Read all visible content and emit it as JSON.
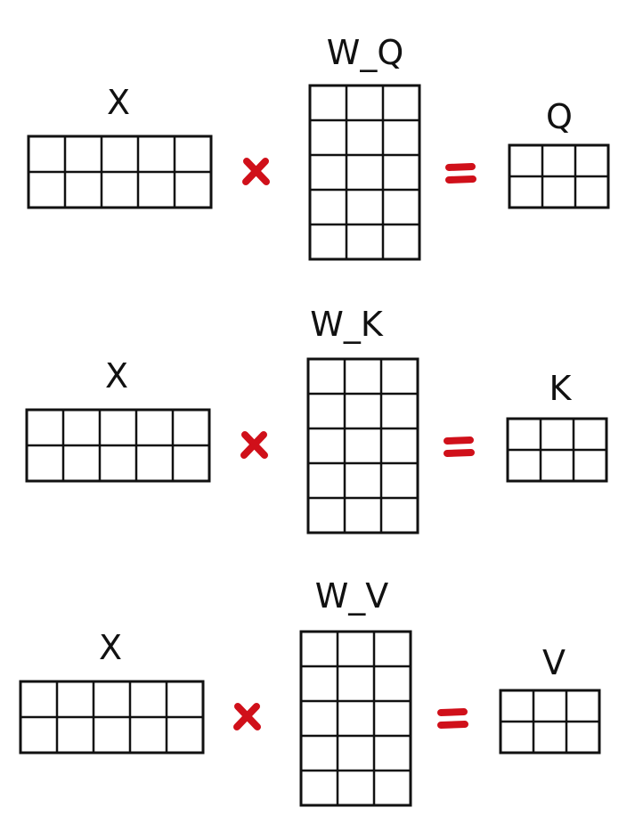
{
  "colors": {
    "ink": "#111111",
    "operator": "#d0101a"
  },
  "rows": [
    {
      "input_label": "X",
      "weight_label": "W_Q",
      "output_label": "Q",
      "input_shape": [
        2,
        5
      ],
      "weight_shape": [
        5,
        3
      ],
      "output_shape": [
        2,
        3
      ]
    },
    {
      "input_label": "X",
      "weight_label": "W_K",
      "output_label": "K",
      "input_shape": [
        2,
        5
      ],
      "weight_shape": [
        5,
        3
      ],
      "output_shape": [
        2,
        3
      ]
    },
    {
      "input_label": "X",
      "weight_label": "W_V",
      "output_label": "V",
      "input_shape": [
        2,
        5
      ],
      "weight_shape": [
        5,
        3
      ],
      "output_shape": [
        2,
        3
      ]
    }
  ]
}
